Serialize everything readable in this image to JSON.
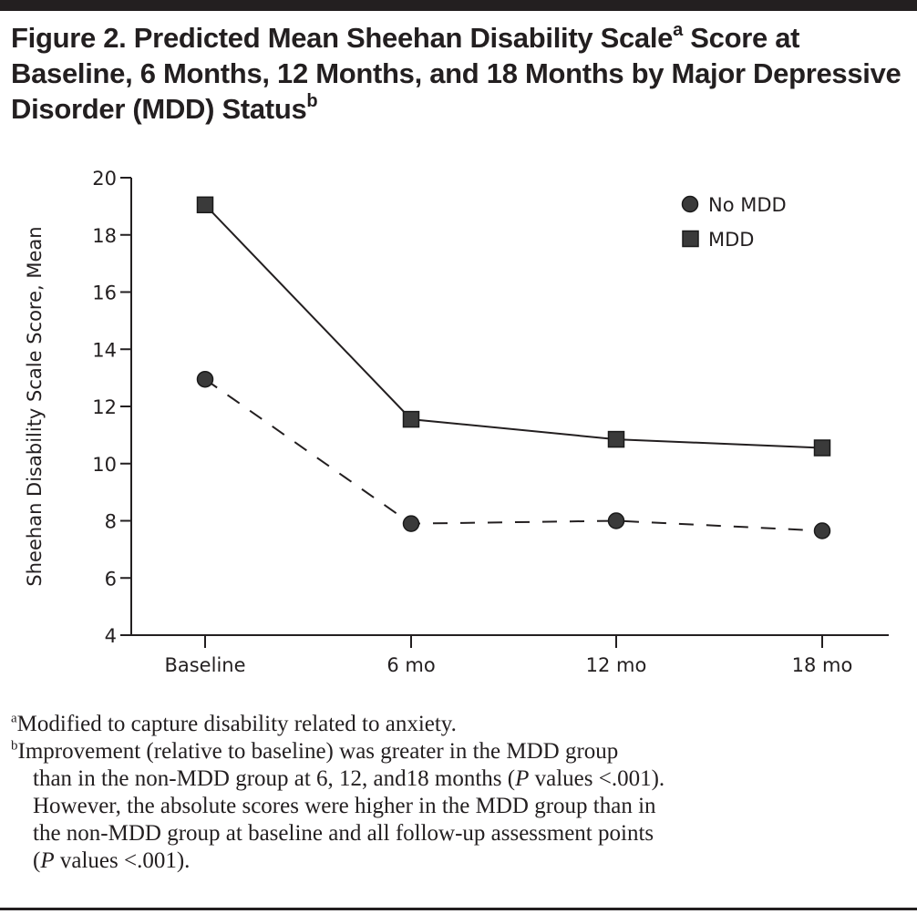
{
  "figure": {
    "title_main": "Figure 2. Predicted Mean Sheehan Disability Scale",
    "title_sup_a": "a",
    "title_rest": " Score at Baseline, 6 Months, 12 Months, and 18 Months by Major Depressive Disorder (MDD) Status",
    "title_sup_b": "b"
  },
  "footnotes": {
    "a_mark": "a",
    "a_text": "Modified to capture disability related to anxiety.",
    "b_mark": "b",
    "b_line1": "Improvement (relative to baseline) was greater in the MDD group",
    "b_line2_pre": "than in the non-MDD group at 6, 12, and18 months (",
    "b_line2_p": "P",
    "b_line2_post": " values <.001).",
    "b_line3": "However, the absolute scores were higher in the MDD group than in",
    "b_line4": "the non-MDD group at baseline and all follow-up assessment points",
    "b_line5_pre": "(",
    "b_line5_p": "P",
    "b_line5_post": " values <.001)."
  },
  "chart_data": {
    "type": "line",
    "title": "Predicted Mean Sheehan Disability Scale Score at Baseline, 6 Months, 12 Months, and 18 Months by Major Depressive Disorder (MDD) Status",
    "xlabel": "",
    "ylabel": "Sheehan Disability Scale Score, Mean",
    "categories": [
      "Baseline",
      "6 mo",
      "12 mo",
      "18 mo"
    ],
    "ylim": [
      4,
      20
    ],
    "yticks": [
      4,
      6,
      8,
      10,
      12,
      14,
      16,
      18,
      20
    ],
    "grid": false,
    "legend_position": "top-right",
    "series": [
      {
        "name": "No MDD",
        "marker": "circle",
        "line_style": "dashed",
        "color": "#3a3a3a",
        "values": [
          12.95,
          7.9,
          8.0,
          7.65
        ]
      },
      {
        "name": "MDD",
        "marker": "square",
        "line_style": "solid",
        "color": "#3a3a3a",
        "values": [
          19.05,
          11.55,
          10.85,
          10.55
        ]
      }
    ]
  }
}
